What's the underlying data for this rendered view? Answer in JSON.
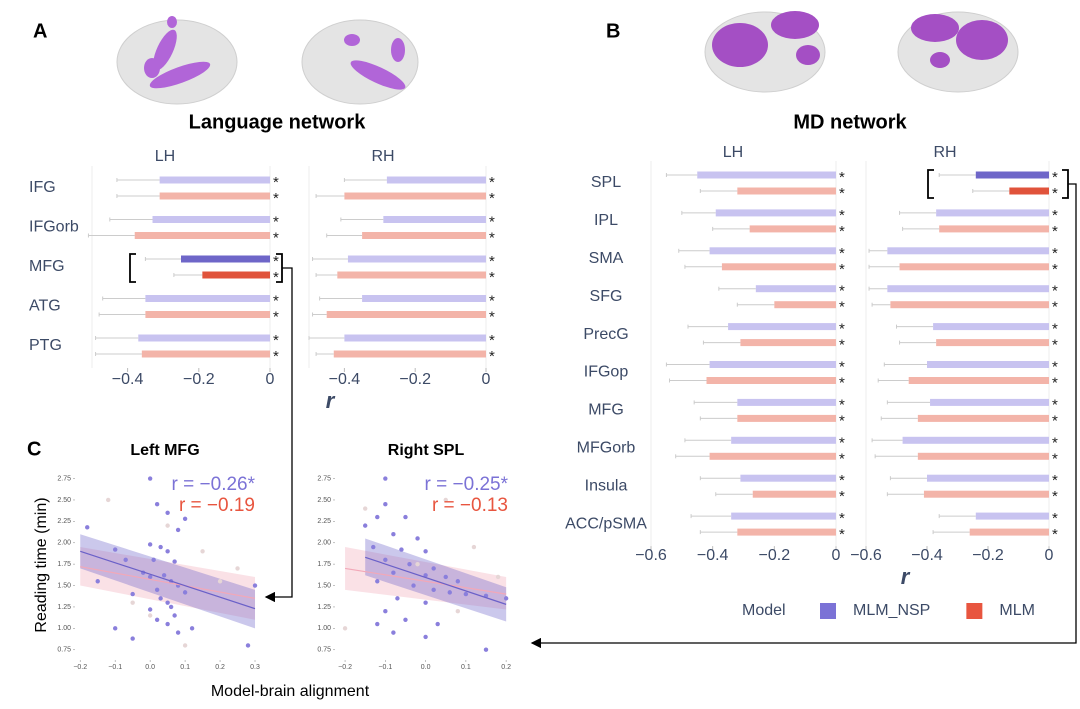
{
  "chart_data": [
    {
      "type": "hbar",
      "panel": "A",
      "title": "Language network",
      "subtitle": "LH",
      "categories": [
        "IFG",
        "IFGorb",
        "MFG",
        "ATG",
        "PTG"
      ],
      "series": [
        {
          "name": "MLM_NSP",
          "color": "#7b72d6",
          "colors": [
            "#c8c3f0",
            "#c8c3f0",
            "#6e66c8",
            "#c8c3f0",
            "#c8c3f0"
          ],
          "values": [
            -0.31,
            -0.33,
            -0.25,
            -0.35,
            -0.37
          ],
          "errors": [
            0.12,
            0.12,
            0.1,
            0.12,
            0.12
          ],
          "significance": [
            "*",
            "*",
            "*",
            "*",
            "*"
          ]
        },
        {
          "name": "MLM",
          "color": "#e8553f",
          "colors": [
            "#f3b4a9",
            "#f3b4a9",
            "#e0533b",
            "#f3b4a9",
            "#f3b4a9"
          ],
          "values": [
            -0.31,
            -0.38,
            -0.19,
            -0.35,
            -0.36
          ],
          "errors": [
            0.12,
            0.13,
            0.08,
            0.13,
            0.13
          ],
          "significance": [
            "*",
            "*",
            "*",
            "*",
            "*"
          ]
        }
      ],
      "xlim": [
        -0.5,
        0
      ],
      "xticks": [
        {
          "value": -0.4,
          "label": "−0.4"
        },
        {
          "value": -0.2,
          "label": "−0.2"
        },
        0
      ]
    },
    {
      "type": "hbar",
      "subtitle": "RH",
      "series": [
        {
          "name": "MLM_NSP",
          "color": "#7b72d6",
          "colors": [
            "#c8c3f0",
            "#c8c3f0",
            "#c8c3f0",
            "#c8c3f0",
            "#c8c3f0"
          ],
          "values": [
            -0.28,
            -0.29,
            -0.39,
            -0.35,
            -0.4
          ],
          "errors": [
            0.12,
            0.12,
            0.1,
            0.12,
            0.1
          ],
          "significance": [
            "*",
            "*",
            "*",
            "*",
            "*"
          ]
        },
        {
          "name": "MLM",
          "color": "#e8553f",
          "colors": [
            "#f3b4a9",
            "#f3b4a9",
            "#f3b4a9",
            "#f3b4a9",
            "#f3b4a9"
          ],
          "values": [
            -0.4,
            -0.35,
            -0.42,
            -0.45,
            -0.43
          ],
          "errors": [
            0.08,
            0.1,
            0.06,
            0.04,
            0.05
          ],
          "significance": [
            "*",
            "*",
            "*",
            "*",
            "*"
          ]
        }
      ],
      "xlim": [
        -0.5,
        0
      ],
      "xticks": [
        {
          "value": -0.4,
          "label": "−0.4"
        },
        {
          "value": -0.2,
          "label": "−0.2"
        },
        0
      ],
      "xlabel": "r"
    },
    {
      "type": "hbar",
      "panel": "B",
      "title": "MD network",
      "subtitle": "LH",
      "categories": [
        "SPL",
        "IPL",
        "SMA",
        "SFG",
        "PrecG",
        "IFGop",
        "MFG",
        "MFGorb",
        "Insula",
        "ACC/pSMA"
      ],
      "series": [
        {
          "name": "MLM_NSP",
          "color": "#7b72d6",
          "colors": [
            "#c8c3f0",
            "#c8c3f0",
            "#c8c3f0",
            "#c8c3f0",
            "#c8c3f0",
            "#c8c3f0",
            "#c8c3f0",
            "#c8c3f0",
            "#c8c3f0",
            "#c8c3f0"
          ],
          "values": [
            -0.45,
            -0.39,
            -0.41,
            -0.26,
            -0.35,
            -0.41,
            -0.32,
            -0.34,
            -0.31,
            -0.34
          ],
          "errors": [
            0.1,
            0.11,
            0.1,
            0.12,
            0.13,
            0.14,
            0.14,
            0.15,
            0.13,
            0.13
          ],
          "significance": [
            "*",
            "*",
            "*",
            "*",
            "*",
            "*",
            "*",
            "*",
            "*",
            "*"
          ]
        },
        {
          "name": "MLM",
          "color": "#e8553f",
          "colors": [
            "#f3b4a9",
            "#f3b4a9",
            "#f3b4a9",
            "#f3b4a9",
            "#f3b4a9",
            "#f3b4a9",
            "#f3b4a9",
            "#f3b4a9",
            "#f3b4a9",
            "#f3b4a9"
          ],
          "values": [
            -0.32,
            -0.28,
            -0.37,
            -0.2,
            -0.31,
            -0.42,
            -0.32,
            -0.41,
            -0.27,
            -0.32
          ],
          "errors": [
            0.12,
            0.12,
            0.12,
            0.12,
            0.12,
            0.12,
            0.12,
            0.11,
            0.12,
            0.12
          ],
          "significance": [
            "*",
            "*",
            "*",
            "*",
            "*",
            "*",
            "*",
            "*",
            "*",
            "*"
          ]
        }
      ],
      "xlim": [
        -0.6,
        0
      ],
      "xticks": [
        {
          "value": -0.6,
          "label": "−0.6"
        },
        {
          "value": -0.4,
          "label": "−0.4"
        },
        {
          "value": -0.2,
          "label": "−0.2"
        },
        0
      ]
    },
    {
      "type": "hbar",
      "subtitle": "RH",
      "legend_title": "Model",
      "series": [
        {
          "name": "MLM_NSP",
          "color": "#7b72d6",
          "colors": [
            "#6e66c8",
            "#c8c3f0",
            "#c8c3f0",
            "#c8c3f0",
            "#c8c3f0",
            "#c8c3f0",
            "#c8c3f0",
            "#c8c3f0",
            "#c8c3f0",
            "#c8c3f0"
          ],
          "values": [
            -0.24,
            -0.37,
            -0.53,
            -0.53,
            -0.38,
            -0.4,
            -0.39,
            -0.48,
            -0.4,
            -0.24
          ],
          "errors": [
            0.12,
            0.12,
            0.06,
            0.06,
            0.12,
            0.14,
            0.14,
            0.1,
            0.12,
            0.12
          ],
          "significance": [
            "*",
            "*",
            "*",
            "*",
            "*",
            "*",
            "*",
            "*",
            "*",
            "*"
          ]
        },
        {
          "name": "MLM",
          "color": "#e8553f",
          "colors": [
            "#e0533b",
            "#f3b4a9",
            "#f3b4a9",
            "#f3b4a9",
            "#f3b4a9",
            "#f3b4a9",
            "#f3b4a9",
            "#f3b4a9",
            "#f3b4a9",
            "#f3b4a9"
          ],
          "values": [
            -0.13,
            -0.36,
            -0.49,
            -0.52,
            -0.37,
            -0.46,
            -0.43,
            -0.43,
            -0.41,
            -0.26
          ],
          "errors": [
            0.12,
            0.12,
            0.1,
            0.06,
            0.12,
            0.1,
            0.12,
            0.14,
            0.12,
            0.12
          ],
          "significance": [
            "*",
            "*",
            "*",
            "*",
            "*",
            "*",
            "*",
            "*",
            "*",
            "*"
          ]
        }
      ],
      "xlim": [
        -0.6,
        0
      ],
      "xticks": [
        {
          "value": -0.6,
          "label": "−0.6"
        },
        {
          "value": -0.4,
          "label": "−0.4"
        },
        {
          "value": -0.2,
          "label": "−0.2"
        },
        0
      ],
      "xlabel": "r"
    },
    {
      "type": "scatter",
      "panel": "C",
      "title": "Left MFG",
      "ylabel": "Reading time (min)",
      "annotations": [
        {
          "text": "r = −0.26*",
          "color": "#7b72d6"
        },
        {
          "text": "r = −0.19",
          "color": "#e8553f"
        }
      ],
      "series": [
        {
          "color": "#e6d6d6",
          "x": [
            -0.12,
            0.05,
            0.15,
            0.2,
            -0.05,
            0.1,
            0.25,
            0.0
          ],
          "y": [
            2.5,
            2.2,
            1.9,
            1.55,
            1.3,
            0.8,
            1.7,
            1.15
          ]
        },
        {
          "color": "#8a7fdc",
          "x": [
            0.0,
            0.02,
            0.05,
            -0.18,
            0.1,
            0.08,
            -0.1,
            0.0,
            0.03,
            0.05,
            -0.07,
            0.01,
            0.07,
            -0.15,
            -0.02,
            0.0,
            0.04,
            0.06,
            0.08,
            0.02,
            0.1,
            -0.05,
            0.03,
            0.05,
            0.06,
            0.0,
            0.07,
            0.02,
            0.05,
            0.12,
            -0.1,
            0.08,
            0.28,
            0.3,
            -0.05
          ],
          "y": [
            2.75,
            2.45,
            2.35,
            2.18,
            2.28,
            2.15,
            1.92,
            1.98,
            1.95,
            1.9,
            1.8,
            1.8,
            1.78,
            1.55,
            1.65,
            1.6,
            1.62,
            1.55,
            1.5,
            1.45,
            1.42,
            1.4,
            1.35,
            1.3,
            1.25,
            1.22,
            1.15,
            1.1,
            1.05,
            1.0,
            1.0,
            0.95,
            0.8,
            1.5,
            0.88
          ]
        }
      ],
      "fits": [
        {
          "color": "#f2a8b8",
          "x": [
            -0.2,
            0.3
          ],
          "y": [
            1.72,
            1.35
          ],
          "lower": [
            1.5,
            1.1
          ],
          "upper": [
            1.95,
            1.6
          ]
        },
        {
          "color": "#6a60c8",
          "x": [
            -0.2,
            0.3
          ],
          "y": [
            1.9,
            1.23
          ],
          "lower": [
            1.7,
            1.0
          ],
          "upper": [
            2.1,
            1.45
          ]
        }
      ],
      "xlim": [
        -0.215,
        0.32
      ],
      "ylim": [
        0.63,
        2.85
      ],
      "xticks": [
        {
          "value": -0.2,
          "label": "−0.2"
        },
        {
          "value": -0.1,
          "label": "−0.1"
        },
        {
          "value": 0,
          "label": "0.0"
        },
        0.1,
        0.2,
        0.3
      ],
      "yticks": [
        0.75,
        {
          "value": 1,
          "label": "1.00"
        },
        1.25,
        {
          "value": 1.5,
          "label": "1.50"
        },
        1.75,
        {
          "value": 2,
          "label": "2.00"
        },
        2.25,
        {
          "value": 2.5,
          "label": "2.50"
        },
        2.75
      ]
    },
    {
      "type": "scatter",
      "title": "Right SPL",
      "xlabel": "Model-brain alignment",
      "annotations": [
        {
          "text": "r = −0.25*",
          "color": "#7b72d6"
        },
        {
          "text": "r = −0.13",
          "color": "#e8553f"
        }
      ],
      "series": [
        {
          "color": "#e6d6d6",
          "x": [
            -0.15,
            0.05,
            0.12,
            -0.2,
            0.18,
            0.08,
            -0.02
          ],
          "y": [
            2.4,
            2.5,
            1.95,
            1.0,
            1.6,
            1.2,
            1.75
          ]
        },
        {
          "color": "#8a7fdc",
          "x": [
            -0.1,
            -0.1,
            -0.12,
            -0.05,
            -0.15,
            -0.08,
            -0.02,
            -0.13,
            -0.06,
            0.0,
            -0.1,
            -0.04,
            0.02,
            -0.08,
            0.0,
            0.05,
            -0.12,
            0.08,
            -0.03,
            0.02,
            0.06,
            0.1,
            -0.07,
            0.0,
            0.15,
            -0.1,
            -0.05,
            0.03,
            -0.08,
            0.0,
            0.15,
            0.2,
            -0.12
          ],
          "y": [
            2.75,
            2.45,
            2.3,
            2.3,
            2.2,
            2.1,
            2.05,
            1.95,
            1.92,
            1.9,
            1.8,
            1.75,
            1.7,
            1.65,
            1.62,
            1.6,
            1.55,
            1.55,
            1.5,
            1.45,
            1.42,
            1.4,
            1.35,
            1.3,
            1.38,
            1.2,
            1.1,
            1.05,
            0.95,
            0.9,
            0.75,
            1.35,
            1.05
          ]
        }
      ],
      "fits": [
        {
          "color": "#f2a8b8",
          "x": [
            -0.2,
            0.2
          ],
          "y": [
            1.7,
            1.4
          ],
          "lower": [
            1.45,
            1.22
          ],
          "upper": [
            1.95,
            1.6
          ]
        },
        {
          "color": "#6a60c8",
          "x": [
            -0.15,
            0.2
          ],
          "y": [
            1.83,
            1.28
          ],
          "lower": [
            1.62,
            1.08
          ],
          "upper": [
            2.05,
            1.48
          ]
        }
      ],
      "xlim": [
        -0.225,
        0.222
      ],
      "ylim": [
        0.63,
        2.85
      ],
      "xticks": [
        {
          "value": -0.2,
          "label": "−0.2"
        },
        {
          "value": -0.1,
          "label": "−0.1"
        },
        {
          "value": 0,
          "label": "0.0"
        },
        0.1,
        0.2
      ],
      "yticks": [
        0.75,
        {
          "value": 1,
          "label": "1.00"
        },
        1.25,
        {
          "value": 1.5,
          "label": "1.50"
        },
        1.75,
        {
          "value": 2,
          "label": "2.00"
        },
        2.25,
        {
          "value": 2.5,
          "label": "2.50"
        },
        2.75
      ]
    }
  ]
}
